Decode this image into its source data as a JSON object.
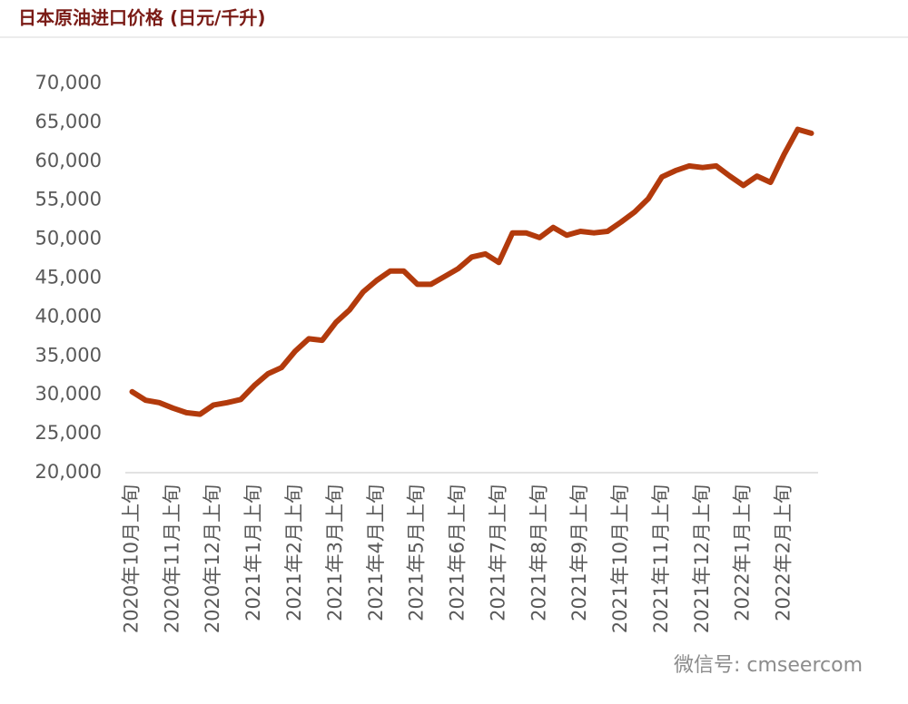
{
  "chart_data": {
    "type": "line",
    "title": "日本原油进口价格 (日元/千升)",
    "watermark": "微信号: cmseercom",
    "categories": [
      "2020年10月上旬",
      null,
      null,
      "2020年11月上旬",
      null,
      null,
      "2020年12月上旬",
      null,
      null,
      "2021年1月上旬",
      null,
      null,
      "2021年2月上旬",
      null,
      null,
      "2021年3月上旬",
      null,
      null,
      "2021年4月上旬",
      null,
      null,
      "2021年5月上旬",
      null,
      null,
      "2021年6月上旬",
      null,
      null,
      "2021年7月上旬",
      null,
      null,
      "2021年8月上旬",
      null,
      null,
      "2021年9月上旬",
      null,
      null,
      "2021年10月上旬",
      null,
      null,
      "2021年11月上旬",
      null,
      null,
      "2021年12月上旬",
      null,
      null,
      "2022年1月上旬",
      null,
      null,
      "2022年2月上旬",
      null,
      null
    ],
    "series": [
      {
        "color": "#b23a0c",
        "values": [
          30400,
          29300,
          29000,
          28300,
          27700,
          27500,
          28700,
          29000,
          29400,
          31200,
          32700,
          33500,
          35600,
          37200,
          37000,
          39300,
          40900,
          43200,
          44700,
          45900,
          45900,
          44200,
          44200,
          45200,
          46200,
          47700,
          48100,
          47000,
          50800,
          50800,
          50200,
          51500,
          50500,
          51000,
          50800,
          51000,
          52200,
          53500,
          55200,
          58000,
          58800,
          59400,
          59200,
          59400,
          58100,
          56900,
          58100,
          57300,
          60900,
          64100,
          63600
        ]
      }
    ],
    "ylim": [
      20000,
      70000
    ],
    "yticks": [
      {
        "value": 20000,
        "label": "20,000"
      },
      {
        "value": 25000,
        "label": "25,000"
      },
      {
        "value": 30000,
        "label": "30,000"
      },
      {
        "value": 35000,
        "label": "35,000"
      },
      {
        "value": 40000,
        "label": "40,000"
      },
      {
        "value": 45000,
        "label": "45,000"
      },
      {
        "value": 50000,
        "label": "50,000"
      },
      {
        "value": 55000,
        "label": "55,000"
      },
      {
        "value": 60000,
        "label": "60,000"
      },
      {
        "value": 65000,
        "label": "65,000"
      },
      {
        "value": 70000,
        "label": "70,000"
      }
    ]
  }
}
